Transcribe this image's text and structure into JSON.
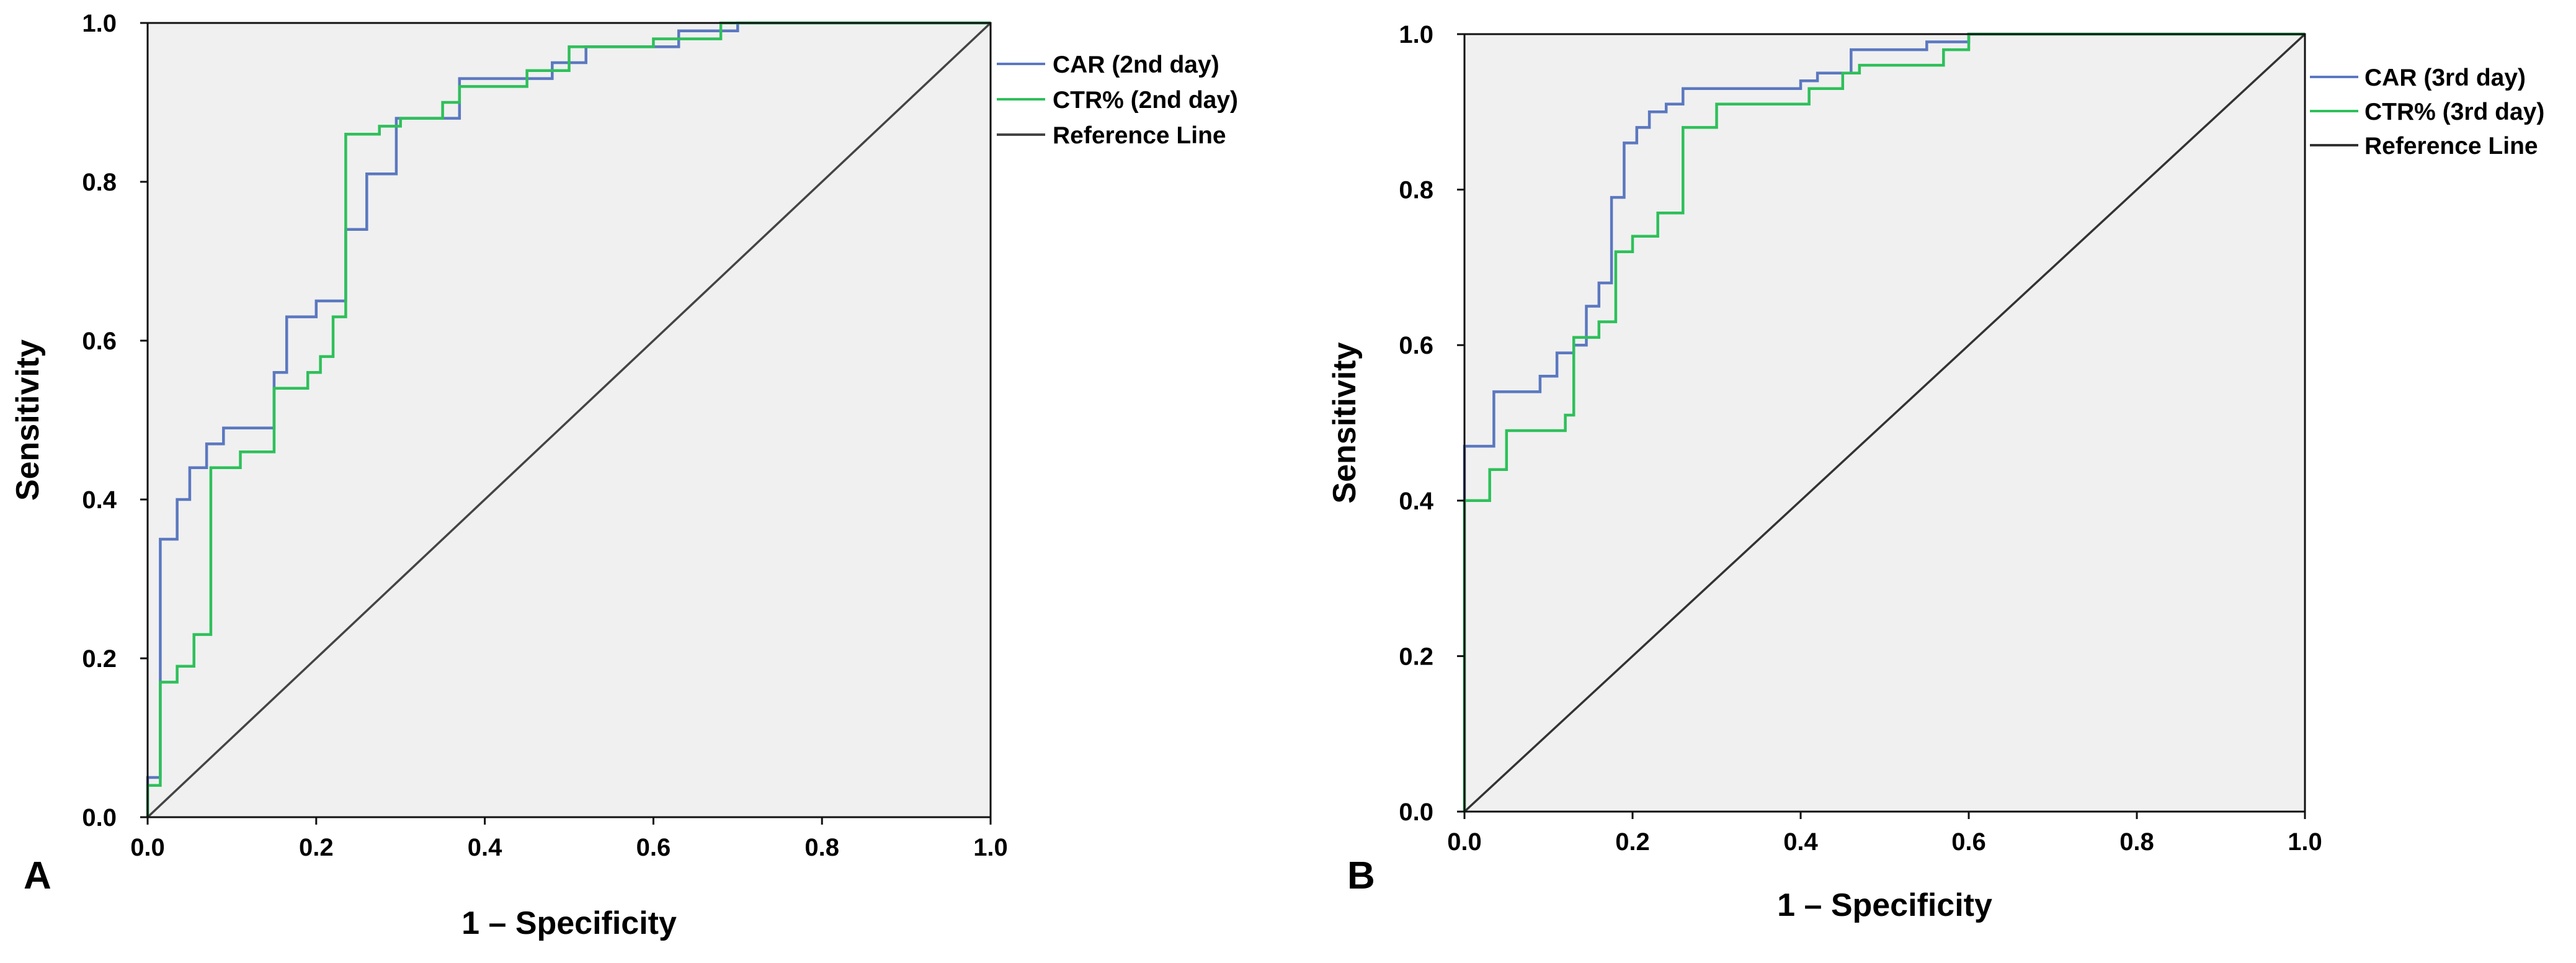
{
  "chart_data": [
    {
      "type": "line",
      "panel_label": "A",
      "xlabel": "1 – Specificity",
      "ylabel": "Sensitivity",
      "xlim": [
        0,
        1
      ],
      "ylim": [
        0,
        1
      ],
      "xticks": [
        "0.0",
        "0.2",
        "0.4",
        "0.6",
        "0.8",
        "1.0"
      ],
      "yticks": [
        "0.0",
        "0.2",
        "0.4",
        "0.6",
        "0.8",
        "1.0"
      ],
      "legend_position": "right",
      "series": [
        {
          "name": "CAR (2nd day)",
          "color": "#5b78c0",
          "x": [
            0,
            0,
            0.015,
            0.015,
            0.035,
            0.035,
            0.05,
            0.05,
            0.07,
            0.07,
            0.09,
            0.09,
            0.15,
            0.15,
            0.165,
            0.165,
            0.2,
            0.2,
            0.235,
            0.235,
            0.26,
            0.26,
            0.295,
            0.295,
            0.37,
            0.37,
            0.48,
            0.48,
            0.52,
            0.52,
            0.63,
            0.63,
            0.7,
            0.7,
            1.0
          ],
          "y": [
            0,
            0.05,
            0.05,
            0.35,
            0.35,
            0.4,
            0.4,
            0.44,
            0.44,
            0.47,
            0.47,
            0.49,
            0.49,
            0.56,
            0.56,
            0.63,
            0.63,
            0.65,
            0.65,
            0.74,
            0.74,
            0.81,
            0.81,
            0.88,
            0.88,
            0.93,
            0.93,
            0.95,
            0.95,
            0.97,
            0.97,
            0.99,
            0.99,
            1.0,
            1.0
          ]
        },
        {
          "name": "CTR% (2nd day)",
          "color": "#2ec05a",
          "x": [
            0,
            0,
            0.015,
            0.015,
            0.035,
            0.035,
            0.055,
            0.055,
            0.075,
            0.075,
            0.11,
            0.11,
            0.15,
            0.15,
            0.19,
            0.19,
            0.205,
            0.205,
            0.22,
            0.22,
            0.235,
            0.235,
            0.275,
            0.275,
            0.3,
            0.3,
            0.35,
            0.35,
            0.37,
            0.37,
            0.45,
            0.45,
            0.5,
            0.5,
            0.6,
            0.6,
            0.68,
            0.68,
            1.0
          ],
          "y": [
            0,
            0.04,
            0.04,
            0.17,
            0.17,
            0.19,
            0.19,
            0.23,
            0.23,
            0.44,
            0.44,
            0.46,
            0.46,
            0.54,
            0.54,
            0.56,
            0.56,
            0.58,
            0.58,
            0.63,
            0.63,
            0.86,
            0.86,
            0.87,
            0.87,
            0.88,
            0.88,
            0.9,
            0.9,
            0.92,
            0.92,
            0.94,
            0.94,
            0.97,
            0.97,
            0.98,
            0.98,
            1.0,
            1.0
          ]
        },
        {
          "name": "Reference Line",
          "color": "#444444",
          "x": [
            0,
            1
          ],
          "y": [
            0,
            1
          ]
        }
      ]
    },
    {
      "type": "line",
      "panel_label": "B",
      "xlabel": "1 – Specificity",
      "ylabel": "Sensitivity",
      "xlim": [
        0,
        1
      ],
      "ylim": [
        0,
        1
      ],
      "xticks": [
        "0.0",
        "0.2",
        "0.4",
        "0.6",
        "0.8",
        "1.0"
      ],
      "yticks": [
        "0.0",
        "0.2",
        "0.4",
        "0.6",
        "0.8",
        "1.0"
      ],
      "legend_position": "right",
      "series": [
        {
          "name": "CAR (3rd day)",
          "color": "#5b78c0",
          "x": [
            0,
            0,
            0.035,
            0.035,
            0.09,
            0.09,
            0.11,
            0.11,
            0.13,
            0.13,
            0.145,
            0.145,
            0.16,
            0.16,
            0.175,
            0.175,
            0.19,
            0.19,
            0.205,
            0.205,
            0.22,
            0.22,
            0.24,
            0.24,
            0.26,
            0.26,
            0.4,
            0.4,
            0.42,
            0.42,
            0.46,
            0.46,
            0.55,
            0.55,
            0.6,
            0.6,
            1.0
          ],
          "y": [
            0,
            0.47,
            0.47,
            0.54,
            0.54,
            0.56,
            0.56,
            0.59,
            0.59,
            0.6,
            0.6,
            0.65,
            0.65,
            0.68,
            0.68,
            0.79,
            0.79,
            0.86,
            0.86,
            0.88,
            0.88,
            0.9,
            0.9,
            0.91,
            0.91,
            0.93,
            0.93,
            0.94,
            0.94,
            0.95,
            0.95,
            0.98,
            0.98,
            0.99,
            0.99,
            1.0,
            1.0
          ]
        },
        {
          "name": "CTR% (3rd day)",
          "color": "#2ec05a",
          "x": [
            0,
            0,
            0.03,
            0.03,
            0.05,
            0.05,
            0.12,
            0.12,
            0.13,
            0.13,
            0.16,
            0.16,
            0.18,
            0.18,
            0.2,
            0.2,
            0.23,
            0.23,
            0.26,
            0.26,
            0.3,
            0.3,
            0.41,
            0.41,
            0.45,
            0.45,
            0.47,
            0.47,
            0.57,
            0.57,
            0.6,
            0.6,
            1.0
          ],
          "y": [
            0,
            0.4,
            0.4,
            0.44,
            0.44,
            0.49,
            0.49,
            0.51,
            0.51,
            0.61,
            0.61,
            0.63,
            0.63,
            0.72,
            0.72,
            0.74,
            0.74,
            0.77,
            0.77,
            0.88,
            0.88,
            0.91,
            0.91,
            0.93,
            0.93,
            0.95,
            0.95,
            0.96,
            0.96,
            0.98,
            0.98,
            1.0,
            1.0
          ]
        },
        {
          "name": "Reference Line",
          "color": "#333333",
          "x": [
            0,
            1
          ],
          "y": [
            0,
            1
          ]
        }
      ]
    }
  ]
}
